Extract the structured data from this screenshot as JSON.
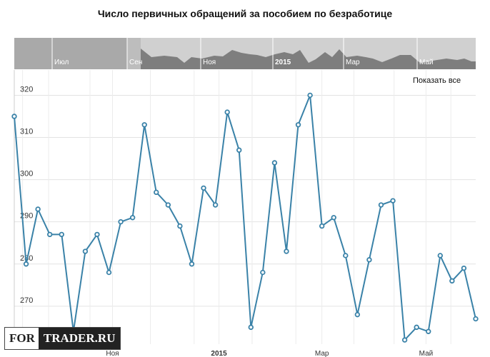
{
  "title": "Число первичных обращений за пособием по безработице",
  "show_all_label": "Показать все",
  "watermark": {
    "left": "FOR",
    "right": "TRADER.RU"
  },
  "navigator": {
    "labels": [
      "Июл",
      "Сен",
      "Ноя",
      "2015",
      "Мар",
      "Май"
    ]
  },
  "colors": {
    "line": "#3a82a8",
    "marker_fill": "#ffffff",
    "grid": "#e3e3e3",
    "navigator_bg": "#d0d0d0",
    "navigator_mask": "#a9a9a9",
    "navigator_area": "#7e7e7e"
  },
  "chart_data": {
    "type": "line",
    "title": "Число первичных обращений за пособием по безработице",
    "xlabel": "",
    "ylabel": "",
    "ylim": [
      261,
      326
    ],
    "yticks": [
      270,
      280,
      290,
      300,
      310,
      320
    ],
    "xticks": [
      "Ноя",
      "2015",
      "Мар",
      "Май"
    ],
    "series": [
      {
        "values": [
          315,
          280,
          293,
          287,
          287,
          264,
          283,
          287,
          278,
          290,
          291,
          313,
          297,
          294,
          289,
          280,
          298,
          294,
          316,
          307,
          265,
          278,
          304,
          283,
          313,
          320,
          289,
          291,
          282,
          268,
          281,
          294,
          295,
          262,
          265,
          264,
          282,
          276,
          279,
          267
        ]
      }
    ]
  }
}
